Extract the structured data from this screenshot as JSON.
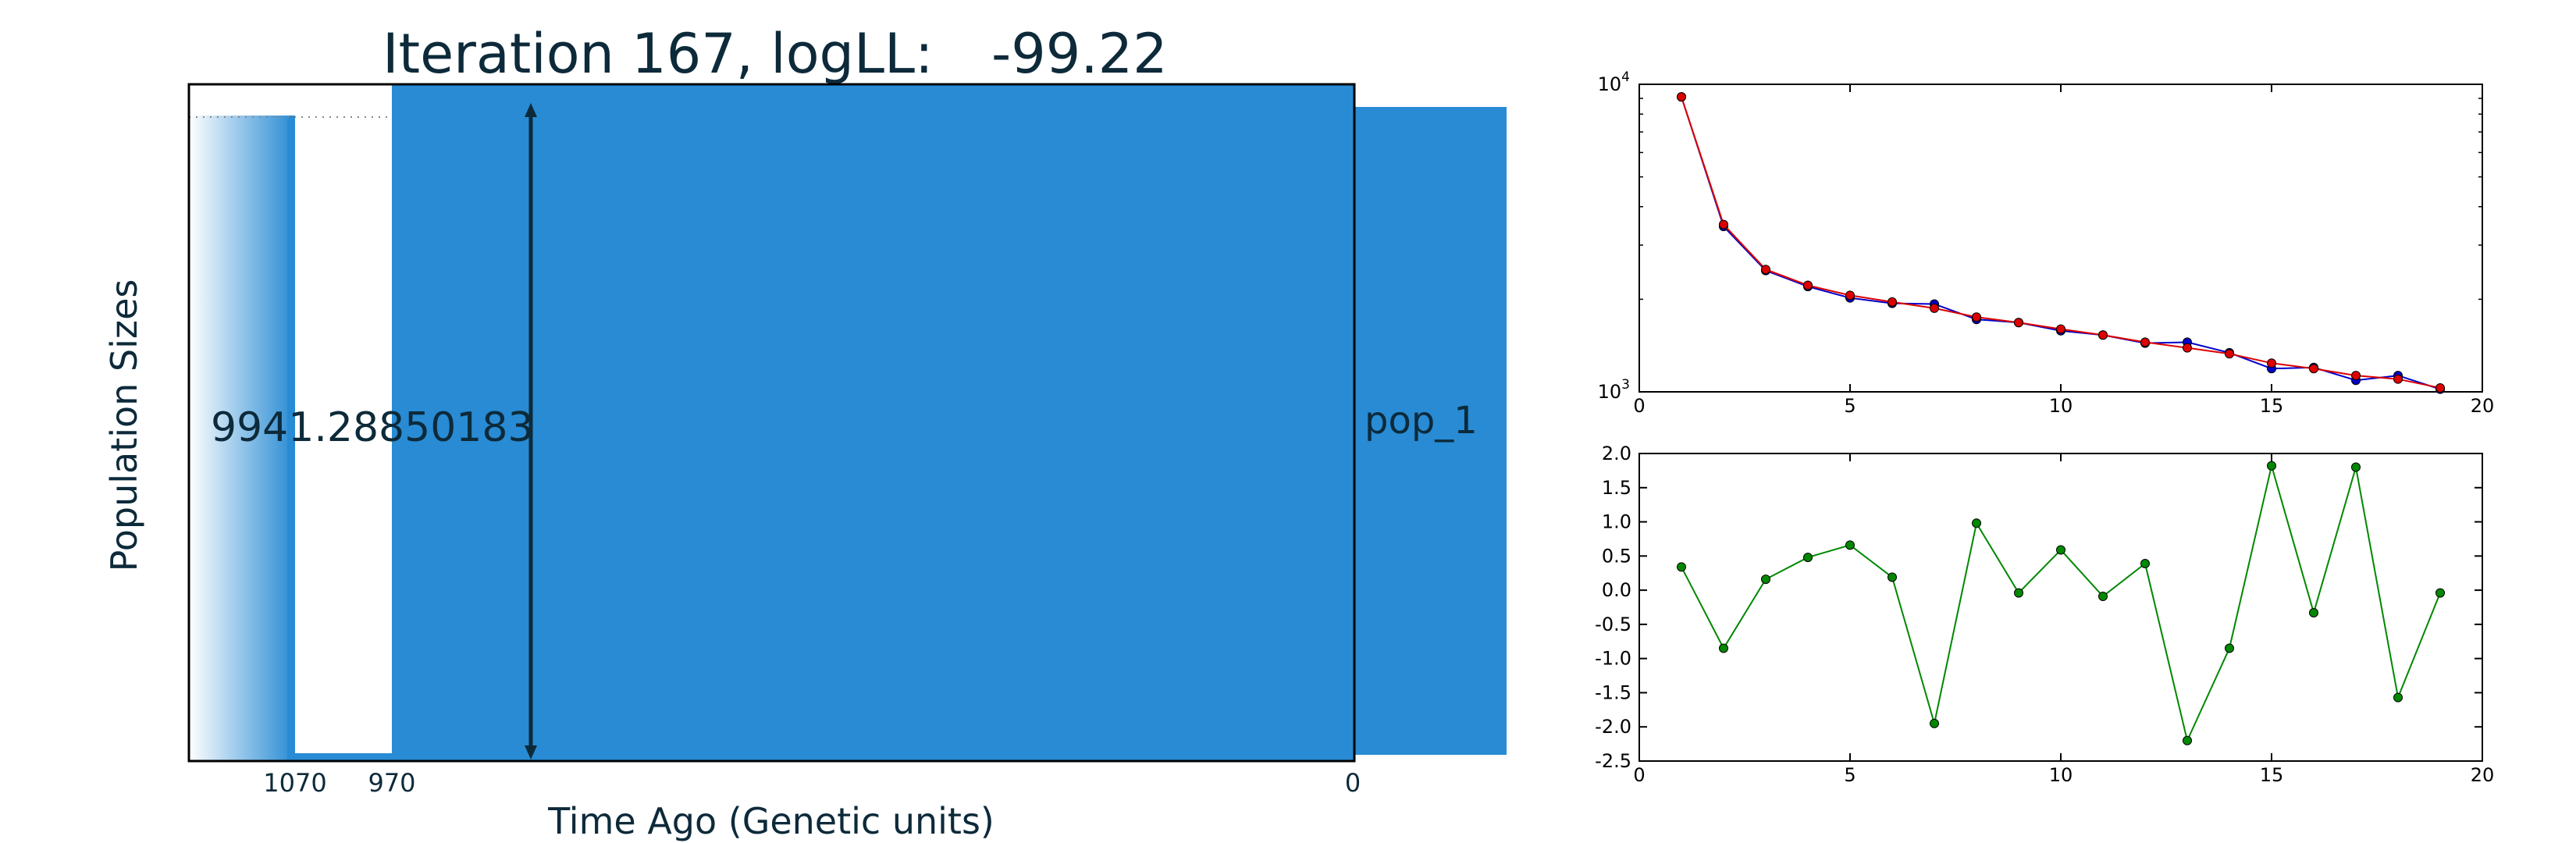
{
  "colors": {
    "population_fill": "#288bd4",
    "dark_text": "#0d2a3a",
    "series_blue": "#0000cc",
    "series_red": "#dd0000",
    "series_green": "#008800"
  },
  "main_panel": {
    "title_prefix": "Iteration 167, logLL:",
    "title_value": "-99.22",
    "ylabel": "Population Sizes",
    "xlabel": "Time Ago (Genetic units)",
    "size_label": "9941.28850183",
    "population_name": "pop_1",
    "time_ticks": [
      "1070",
      "970",
      "0"
    ]
  },
  "chart_data": [
    {
      "type": "line",
      "yscale": "log",
      "xlim": [
        0,
        20
      ],
      "ylim": [
        1000,
        10000
      ],
      "x_ticks": [
        "0",
        "5",
        "10",
        "15",
        "20"
      ],
      "y_ticks": [
        {
          "base": "10",
          "exp": "4",
          "value": 10000
        },
        {
          "base": "10",
          "exp": "3",
          "value": 1000
        }
      ],
      "x": [
        1,
        2,
        3,
        4,
        5,
        6,
        7,
        8,
        9,
        10,
        11,
        12,
        13,
        14,
        15,
        16,
        17,
        18,
        19
      ],
      "series": [
        {
          "color": "#0000cc",
          "values": [
            9100,
            3450,
            2480,
            2200,
            2020,
            1940,
            1930,
            1720,
            1680,
            1580,
            1530,
            1440,
            1450,
            1340,
            1190,
            1200,
            1090,
            1130,
            1020
          ]
        },
        {
          "color": "#dd0000",
          "values": [
            9100,
            3500,
            2500,
            2220,
            2060,
            1960,
            1870,
            1750,
            1680,
            1600,
            1530,
            1450,
            1390,
            1330,
            1240,
            1190,
            1130,
            1100,
            1030
          ]
        }
      ]
    },
    {
      "type": "line",
      "xlim": [
        0,
        20
      ],
      "ylim": [
        -2.5,
        2.0
      ],
      "x_ticks": [
        "0",
        "5",
        "10",
        "15",
        "20"
      ],
      "y_ticks": [
        "2.0",
        "1.5",
        "1.0",
        "0.5",
        "0.0",
        "-0.5",
        "-1.0",
        "-1.5",
        "-2.0",
        "-2.5"
      ],
      "x": [
        1,
        2,
        3,
        4,
        5,
        6,
        7,
        8,
        9,
        10,
        11,
        12,
        13,
        14,
        15,
        16,
        17,
        18,
        19
      ],
      "series": [
        {
          "color": "#008800",
          "values": [
            0.34,
            -0.85,
            0.16,
            0.48,
            0.66,
            0.19,
            -1.95,
            0.98,
            -0.04,
            0.59,
            -0.09,
            0.39,
            -2.2,
            -0.85,
            1.82,
            -0.33,
            1.8,
            -1.57,
            -0.04
          ]
        }
      ]
    }
  ]
}
